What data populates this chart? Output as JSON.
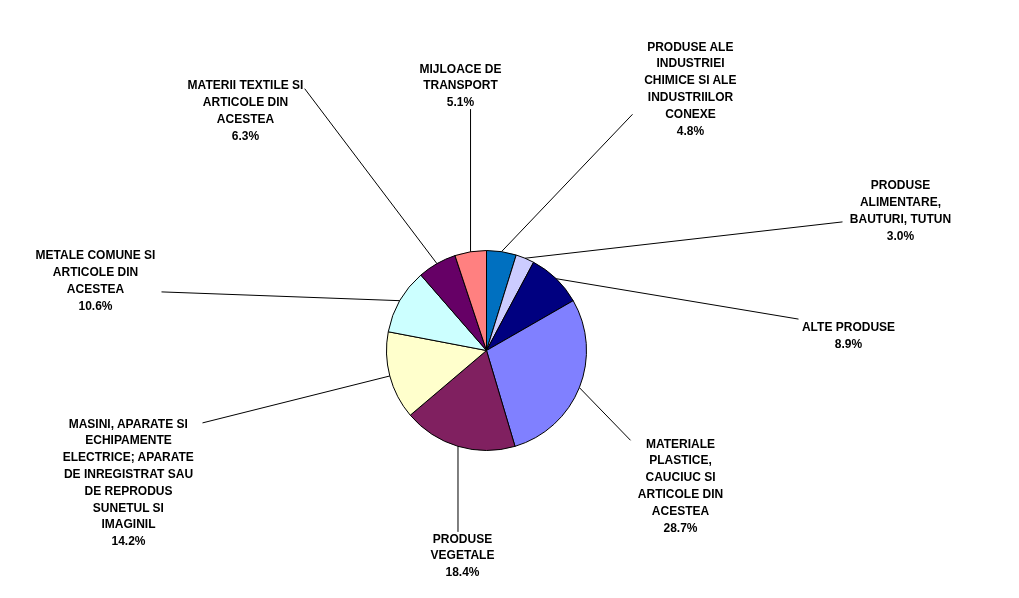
{
  "chart_data": {
    "type": "pie",
    "categories": [
      "PRODUSE ALE INDUSTRIEI CHIMICE SI ALE INDUSTRIILOR CONEXE",
      "PRODUSE ALIMENTARE, BAUTURI, TUTUN",
      "ALTE PRODUSE",
      "MATERIALE PLASTICE, CAUCIUC SI ARTICOLE DIN ACESTEA",
      "PRODUSE VEGETALE",
      "MASINI, APARATE SI ECHIPAMENTE ELECTRICE; APARATE DE INREGISTRAT SAU DE REPRODUS SUNETUL SI IMAGINIL",
      "METALE COMUNE SI ARTICOLE DIN ACESTEA",
      "MATERII TEXTILE SI ARTICOLE DIN ACESTEA",
      "MIJLOACE DE TRANSPORT"
    ],
    "values": [
      4.8,
      3.0,
      8.9,
      28.7,
      18.4,
      14.2,
      10.6,
      6.3,
      5.1
    ],
    "value_labels": [
      "4.8%",
      "3.0%",
      "8.9%",
      "28.7%",
      "18.4%",
      "14.2%",
      "10.6%",
      "6.3%",
      "5.1%"
    ],
    "colors": [
      "#0070c0",
      "#ccccff",
      "#000080",
      "#8080ff",
      "#802060",
      "#ffffcc",
      "#ccffff",
      "#660066",
      "#ff8080"
    ],
    "legend": false
  }
}
